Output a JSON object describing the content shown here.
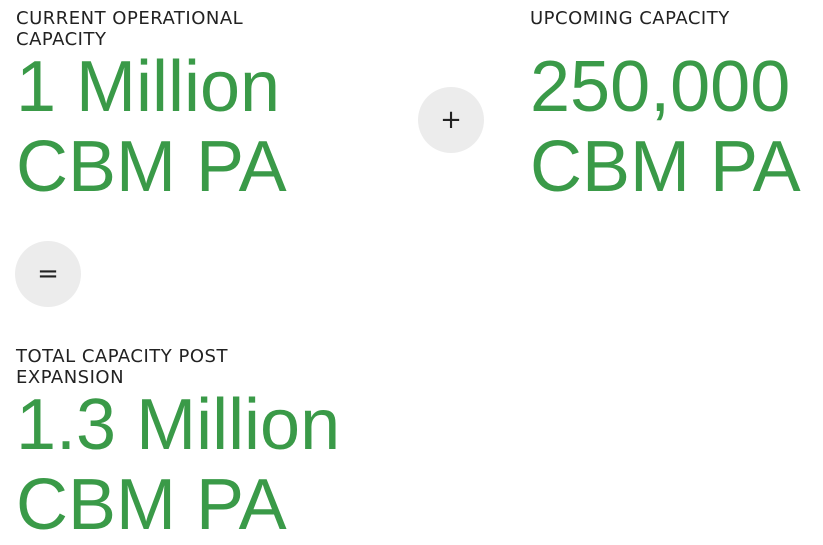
{
  "blocks": [
    {
      "label": "CURRENT OPERATIONAL CAPACITY",
      "value": "1 Million CBM PA"
    },
    {
      "label": "UPCOMING CAPACITY",
      "value": "250,000 CBM PA"
    },
    {
      "label": "TOTAL CAPACITY POST EXPANSION",
      "value": "1.3 Million CBM PA"
    }
  ],
  "operators": {
    "plus": "+",
    "equals": "="
  }
}
